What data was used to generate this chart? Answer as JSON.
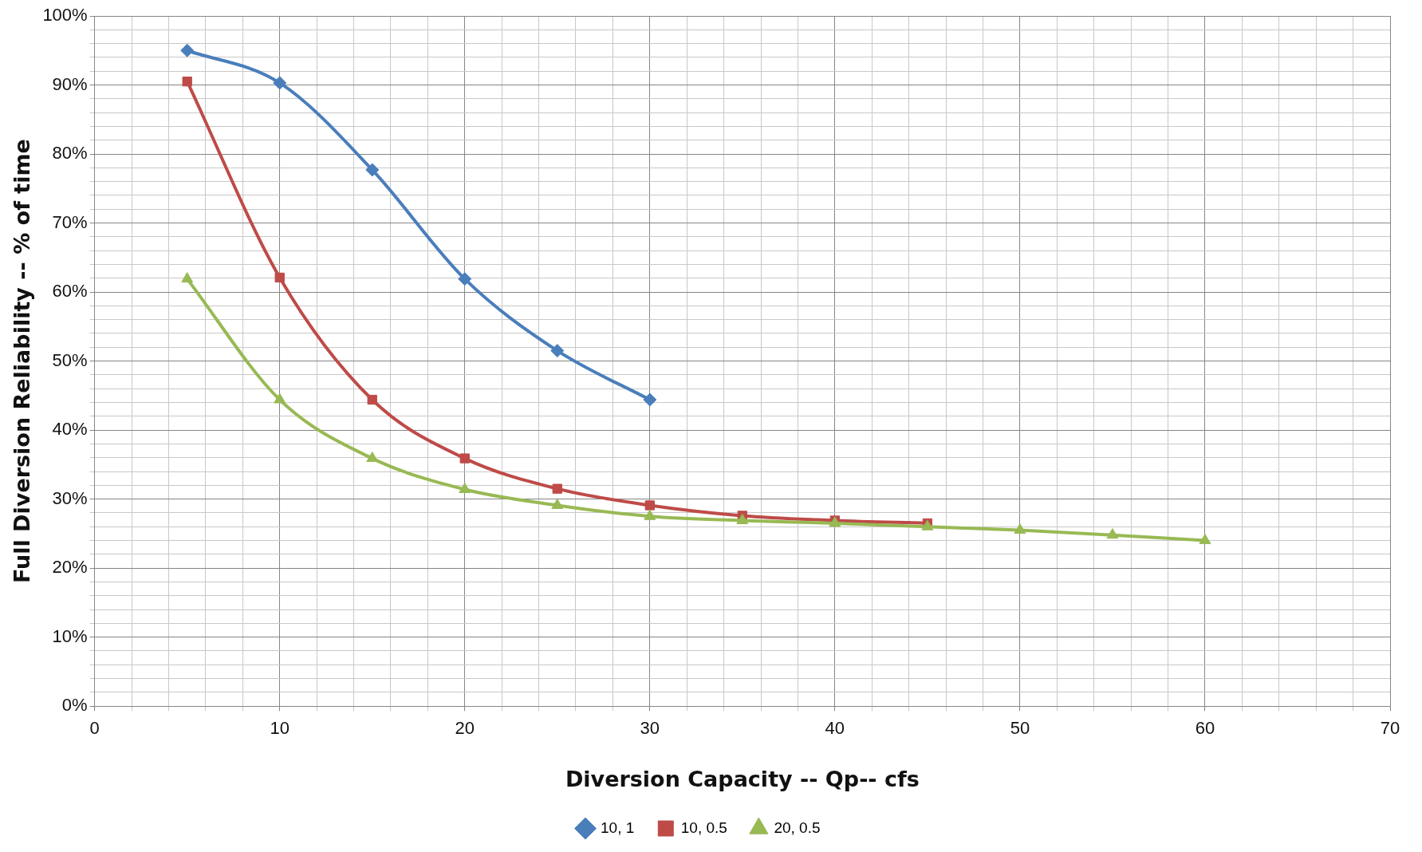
{
  "chart_data": {
    "type": "line",
    "xlabel": "Diversion Capacity -- Qp-- cfs",
    "ylabel": "Full Diversion Reliability -- % of time",
    "x": [
      5,
      10,
      15,
      20,
      25,
      30,
      35,
      40,
      45,
      50,
      55,
      60
    ],
    "series": [
      {
        "name": "10, 1",
        "color": "#4a7ebb",
        "marker": "diamond",
        "values": [
          95,
          90.3,
          77.7,
          61.9,
          51.5,
          44.4,
          null,
          null,
          null,
          null,
          null,
          null
        ]
      },
      {
        "name": "10, 0.5",
        "color": "#be4b48",
        "marker": "square",
        "values": [
          90.5,
          62.1,
          44.4,
          35.9,
          31.5,
          29.1,
          27.6,
          26.9,
          26.5,
          null,
          null,
          null
        ]
      },
      {
        "name": "20, 0.5",
        "color": "#98b954",
        "marker": "triangle",
        "values": [
          61.9,
          44.4,
          35.9,
          31.4,
          29.1,
          27.5,
          26.9,
          26.5,
          26,
          25.5,
          24.8,
          24
        ]
      }
    ],
    "xlim": [
      0,
      70
    ],
    "xticks": [
      0,
      {
        "value": 2,
        "label": null
      },
      {
        "value": 4,
        "label": null
      },
      {
        "value": 6,
        "label": null
      },
      {
        "value": 8,
        "label": null
      },
      10,
      {
        "value": 12,
        "label": null
      },
      {
        "value": 14,
        "label": null
      },
      {
        "value": 16,
        "label": null
      },
      {
        "value": 18,
        "label": null
      },
      20,
      {
        "value": 22,
        "label": null
      },
      {
        "value": 24,
        "label": null
      },
      {
        "value": 26,
        "label": null
      },
      {
        "value": 28,
        "label": null
      },
      30,
      {
        "value": 32,
        "label": null
      },
      {
        "value": 34,
        "label": null
      },
      {
        "value": 36,
        "label": null
      },
      {
        "value": 38,
        "label": null
      },
      40,
      {
        "value": 42,
        "label": null
      },
      {
        "value": 44,
        "label": null
      },
      {
        "value": 46,
        "label": null
      },
      {
        "value": 48,
        "label": null
      },
      50,
      {
        "value": 52,
        "label": null
      },
      {
        "value": 54,
        "label": null
      },
      {
        "value": 56,
        "label": null
      },
      {
        "value": 58,
        "label": null
      },
      60,
      {
        "value": 62,
        "label": null
      },
      {
        "value": 64,
        "label": null
      },
      {
        "value": 66,
        "label": null
      },
      {
        "value": 68,
        "label": null
      },
      70
    ],
    "ylim": [
      0,
      100
    ],
    "yticks": [
      {
        "value": 0,
        "label": "0%"
      },
      {
        "value": 2,
        "label": null
      },
      {
        "value": 4,
        "label": null
      },
      {
        "value": 6,
        "label": null
      },
      {
        "value": 8,
        "label": null
      },
      {
        "value": 10,
        "label": "10%"
      },
      {
        "value": 12,
        "label": null
      },
      {
        "value": 14,
        "label": null
      },
      {
        "value": 16,
        "label": null
      },
      {
        "value": 18,
        "label": null
      },
      {
        "value": 20,
        "label": "20%"
      },
      {
        "value": 22,
        "label": null
      },
      {
        "value": 24,
        "label": null
      },
      {
        "value": 26,
        "label": null
      },
      {
        "value": 28,
        "label": null
      },
      {
        "value": 30,
        "label": "30%"
      },
      {
        "value": 32,
        "label": null
      },
      {
        "value": 34,
        "label": null
      },
      {
        "value": 36,
        "label": null
      },
      {
        "value": 38,
        "label": null
      },
      {
        "value": 40,
        "label": "40%"
      },
      {
        "value": 42,
        "label": null
      },
      {
        "value": 44,
        "label": null
      },
      {
        "value": 46,
        "label": null
      },
      {
        "value": 48,
        "label": null
      },
      {
        "value": 50,
        "label": "50%"
      },
      {
        "value": 52,
        "label": null
      },
      {
        "value": 54,
        "label": null
      },
      {
        "value": 56,
        "label": null
      },
      {
        "value": 58,
        "label": null
      },
      {
        "value": 60,
        "label": "60%"
      },
      {
        "value": 62,
        "label": null
      },
      {
        "value": 64,
        "label": null
      },
      {
        "value": 66,
        "label": null
      },
      {
        "value": 68,
        "label": null
      },
      {
        "value": 70,
        "label": "70%"
      },
      {
        "value": 72,
        "label": null
      },
      {
        "value": 74,
        "label": null
      },
      {
        "value": 76,
        "label": null
      },
      {
        "value": 78,
        "label": null
      },
      {
        "value": 80,
        "label": "80%"
      },
      {
        "value": 82,
        "label": null
      },
      {
        "value": 84,
        "label": null
      },
      {
        "value": 86,
        "label": null
      },
      {
        "value": 88,
        "label": null
      },
      {
        "value": 90,
        "label": "90%"
      },
      {
        "value": 92,
        "label": null
      },
      {
        "value": 94,
        "label": null
      },
      {
        "value": 96,
        "label": null
      },
      {
        "value": 98,
        "label": null
      },
      {
        "value": 100,
        "label": "100%"
      }
    ],
    "grid": true,
    "legend": "bottom",
    "line_style": "solid"
  }
}
